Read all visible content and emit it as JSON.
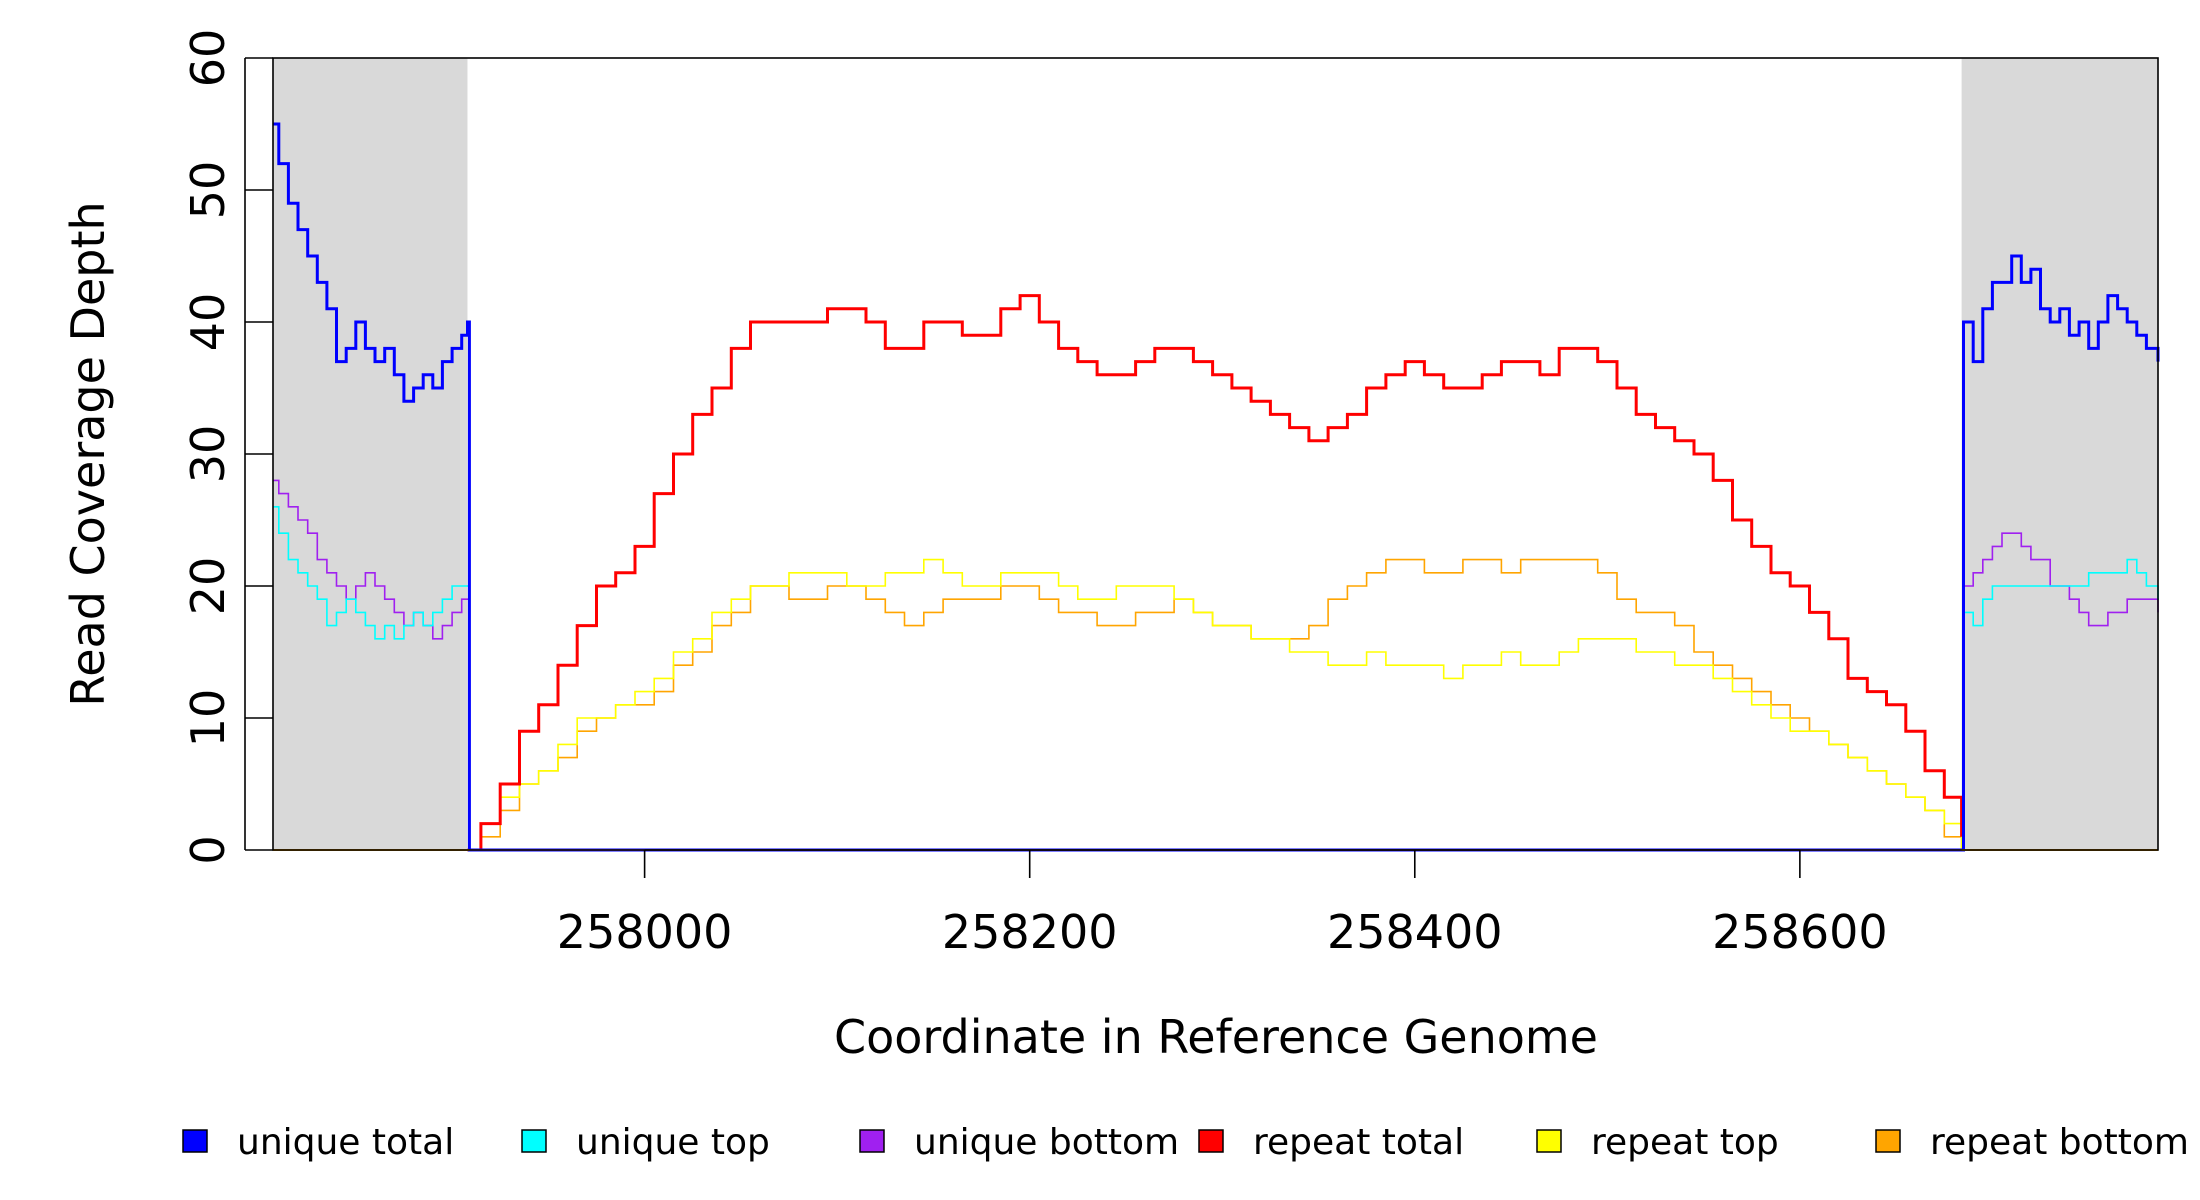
{
  "chart_data": {
    "type": "line",
    "title": "",
    "xlabel": "Coordinate in Reference Genome",
    "ylabel": "Read Coverage Depth",
    "xlim": [
      257807,
      258786
    ],
    "ylim": [
      0,
      60
    ],
    "xticks": [
      258000,
      258200,
      258400,
      258600
    ],
    "xtick_labels": [
      "258000",
      "258200",
      "258400",
      "258600"
    ],
    "yticks": [
      0,
      10,
      20,
      30,
      40,
      50,
      60
    ],
    "ytick_labels": [
      "0",
      "10",
      "20",
      "30",
      "40",
      "50",
      "60"
    ],
    "grid": false,
    "legend_position": "bottom",
    "shaded_regions": [
      {
        "x": [
          257807,
          257908
        ]
      },
      {
        "x": [
          258684,
          258786
        ]
      }
    ],
    "series": [
      {
        "name": "unique total",
        "color": "#0000ff",
        "x": [
          257807,
          257810,
          257815,
          257820,
          257825,
          257830,
          257835,
          257840,
          257845,
          257850,
          257855,
          257860,
          257865,
          257870,
          257875,
          257880,
          257885,
          257890,
          257895,
          257900,
          257905,
          257908,
          257909,
          258684,
          258685,
          258690,
          258695,
          258700,
          258705,
          258710,
          258715,
          258720,
          258725,
          258730,
          258735,
          258740,
          258745,
          258750,
          258755,
          258760,
          258765,
          258770,
          258775,
          258780,
          258786
        ],
        "y": [
          55,
          52,
          49,
          47,
          45,
          43,
          41,
          37,
          38,
          40,
          38,
          37,
          38,
          36,
          34,
          35,
          36,
          35,
          37,
          38,
          39,
          40,
          0,
          0,
          40,
          37,
          41,
          43,
          43,
          45,
          43,
          44,
          41,
          40,
          41,
          39,
          40,
          38,
          40,
          42,
          41,
          40,
          39,
          38,
          37
        ]
      },
      {
        "name": "unique top",
        "color": "#00ffff",
        "x": [
          257807,
          257810,
          257815,
          257820,
          257825,
          257830,
          257835,
          257840,
          257845,
          257850,
          257855,
          257860,
          257865,
          257870,
          257875,
          257880,
          257885,
          257890,
          257895,
          257900,
          257905,
          257908,
          257909,
          258684,
          258685,
          258690,
          258695,
          258700,
          258710,
          258720,
          258730,
          258740,
          258750,
          258760,
          258770,
          258775,
          258780,
          258786
        ],
        "y": [
          26,
          24,
          22,
          21,
          20,
          19,
          17,
          18,
          19,
          18,
          17,
          16,
          17,
          16,
          17,
          18,
          17,
          18,
          19,
          20,
          20,
          20,
          0,
          0,
          18,
          17,
          19,
          20,
          20,
          20,
          20,
          20,
          21,
          21,
          22,
          21,
          20,
          19
        ]
      },
      {
        "name": "unique bottom",
        "color": "#a020f0",
        "x": [
          257807,
          257810,
          257815,
          257820,
          257825,
          257830,
          257835,
          257840,
          257845,
          257850,
          257855,
          257860,
          257865,
          257870,
          257875,
          257880,
          257885,
          257890,
          257895,
          257900,
          257905,
          257908,
          257909,
          258684,
          258685,
          258690,
          258695,
          258700,
          258705,
          258710,
          258715,
          258720,
          258730,
          258740,
          258745,
          258750,
          258760,
          258770,
          258780,
          258786
        ],
        "y": [
          28,
          27,
          26,
          25,
          24,
          22,
          21,
          20,
          19,
          20,
          21,
          20,
          19,
          18,
          17,
          18,
          17,
          16,
          17,
          18,
          19,
          19,
          0,
          0,
          20,
          21,
          22,
          23,
          24,
          24,
          23,
          22,
          20,
          19,
          18,
          17,
          18,
          19,
          19,
          18
        ]
      },
      {
        "name": "repeat total",
        "color": "#ff0000",
        "x": [
          257908,
          257915,
          257925,
          257935,
          257945,
          257955,
          257965,
          257975,
          257985,
          257995,
          258005,
          258015,
          258025,
          258035,
          258045,
          258055,
          258065,
          258075,
          258085,
          258095,
          258105,
          258115,
          258125,
          258135,
          258145,
          258155,
          258165,
          258175,
          258185,
          258195,
          258205,
          258215,
          258225,
          258235,
          258245,
          258255,
          258265,
          258275,
          258285,
          258295,
          258305,
          258315,
          258325,
          258335,
          258345,
          258355,
          258365,
          258375,
          258385,
          258395,
          258405,
          258415,
          258425,
          258435,
          258445,
          258455,
          258465,
          258475,
          258485,
          258495,
          258505,
          258515,
          258525,
          258535,
          258545,
          258555,
          258565,
          258575,
          258585,
          258595,
          258605,
          258615,
          258625,
          258635,
          258645,
          258655,
          258665,
          258675,
          258684
        ],
        "y": [
          0,
          2,
          5,
          9,
          11,
          14,
          17,
          20,
          21,
          23,
          27,
          30,
          33,
          35,
          38,
          40,
          40,
          40,
          40,
          41,
          41,
          40,
          38,
          38,
          40,
          40,
          39,
          39,
          41,
          42,
          40,
          38,
          37,
          36,
          36,
          37,
          38,
          38,
          37,
          36,
          35,
          34,
          33,
          32,
          31,
          32,
          33,
          35,
          36,
          37,
          36,
          35,
          35,
          36,
          37,
          37,
          36,
          38,
          38,
          37,
          35,
          33,
          32,
          31,
          30,
          28,
          25,
          23,
          21,
          20,
          18,
          16,
          13,
          12,
          11,
          9,
          6,
          4,
          1
        ]
      },
      {
        "name": "repeat top",
        "color": "#ffff00",
        "x": [
          257908,
          257915,
          257925,
          257935,
          257945,
          257955,
          257965,
          257975,
          257985,
          257995,
          258005,
          258015,
          258025,
          258035,
          258045,
          258055,
          258065,
          258075,
          258085,
          258095,
          258105,
          258115,
          258125,
          258135,
          258145,
          258155,
          258165,
          258175,
          258185,
          258195,
          258205,
          258215,
          258225,
          258235,
          258245,
          258255,
          258265,
          258275,
          258285,
          258295,
          258305,
          258315,
          258325,
          258335,
          258345,
          258355,
          258365,
          258375,
          258385,
          258395,
          258405,
          258415,
          258425,
          258435,
          258445,
          258455,
          258465,
          258475,
          258485,
          258495,
          258505,
          258515,
          258525,
          258535,
          258545,
          258555,
          258565,
          258575,
          258585,
          258595,
          258605,
          258615,
          258625,
          258635,
          258645,
          258655,
          258665,
          258675,
          258684
        ],
        "y": [
          0,
          2,
          4,
          5,
          6,
          8,
          10,
          10,
          11,
          12,
          13,
          15,
          16,
          18,
          19,
          20,
          20,
          21,
          21,
          21,
          20,
          20,
          21,
          21,
          22,
          21,
          20,
          20,
          21,
          21,
          21,
          20,
          19,
          19,
          20,
          20,
          20,
          19,
          18,
          17,
          17,
          16,
          16,
          15,
          15,
          14,
          14,
          15,
          14,
          14,
          14,
          13,
          14,
          14,
          15,
          14,
          14,
          15,
          16,
          16,
          16,
          15,
          15,
          14,
          14,
          13,
          12,
          11,
          10,
          9,
          9,
          8,
          7,
          6,
          5,
          4,
          3,
          2,
          0
        ]
      },
      {
        "name": "repeat bottom",
        "color": "#ffa500",
        "x": [
          257908,
          257915,
          257925,
          257935,
          257945,
          257955,
          257965,
          257975,
          257985,
          257995,
          258005,
          258015,
          258025,
          258035,
          258045,
          258055,
          258065,
          258075,
          258085,
          258095,
          258105,
          258115,
          258125,
          258135,
          258145,
          258155,
          258165,
          258175,
          258185,
          258195,
          258205,
          258215,
          258225,
          258235,
          258245,
          258255,
          258265,
          258275,
          258285,
          258295,
          258305,
          258315,
          258325,
          258335,
          258345,
          258355,
          258365,
          258375,
          258385,
          258395,
          258405,
          258415,
          258425,
          258435,
          258445,
          258455,
          258465,
          258475,
          258485,
          258495,
          258505,
          258515,
          258525,
          258535,
          258545,
          258555,
          258565,
          258575,
          258585,
          258595,
          258605,
          258615,
          258625,
          258635,
          258645,
          258655,
          258665,
          258675,
          258684
        ],
        "y": [
          0,
          1,
          3,
          5,
          6,
          7,
          9,
          10,
          11,
          11,
          12,
          14,
          15,
          17,
          18,
          20,
          20,
          19,
          19,
          20,
          20,
          19,
          18,
          17,
          18,
          19,
          19,
          19,
          20,
          20,
          19,
          18,
          18,
          17,
          17,
          18,
          18,
          19,
          18,
          17,
          17,
          16,
          16,
          16,
          17,
          19,
          20,
          21,
          22,
          22,
          21,
          21,
          22,
          22,
          21,
          22,
          22,
          22,
          22,
          21,
          19,
          18,
          18,
          17,
          15,
          14,
          13,
          12,
          11,
          10,
          9,
          8,
          7,
          6,
          5,
          4,
          3,
          1,
          0
        ]
      }
    ]
  }
}
